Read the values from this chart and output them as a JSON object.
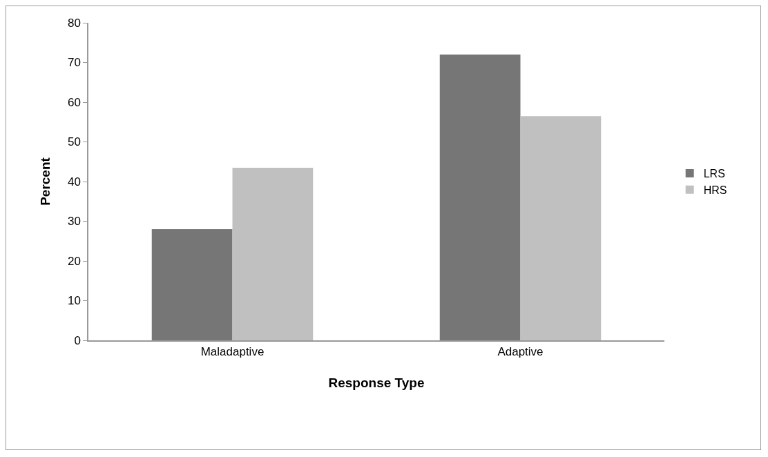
{
  "chart_data": {
    "type": "bar",
    "xlabel": "Response Type",
    "ylabel": "Percent",
    "categories": [
      "Maladaptive",
      "Adaptive"
    ],
    "series": [
      {
        "name": "LRS",
        "color": "#767676",
        "values": [
          28,
          72
        ]
      },
      {
        "name": "HRS",
        "color": "#c0c0c0",
        "values": [
          43.5,
          56.5
        ]
      }
    ],
    "ylim": [
      0,
      80
    ],
    "yticks": [
      0,
      10,
      20,
      30,
      40,
      50,
      60,
      70,
      80
    ],
    "grid": false,
    "legend": "right"
  }
}
